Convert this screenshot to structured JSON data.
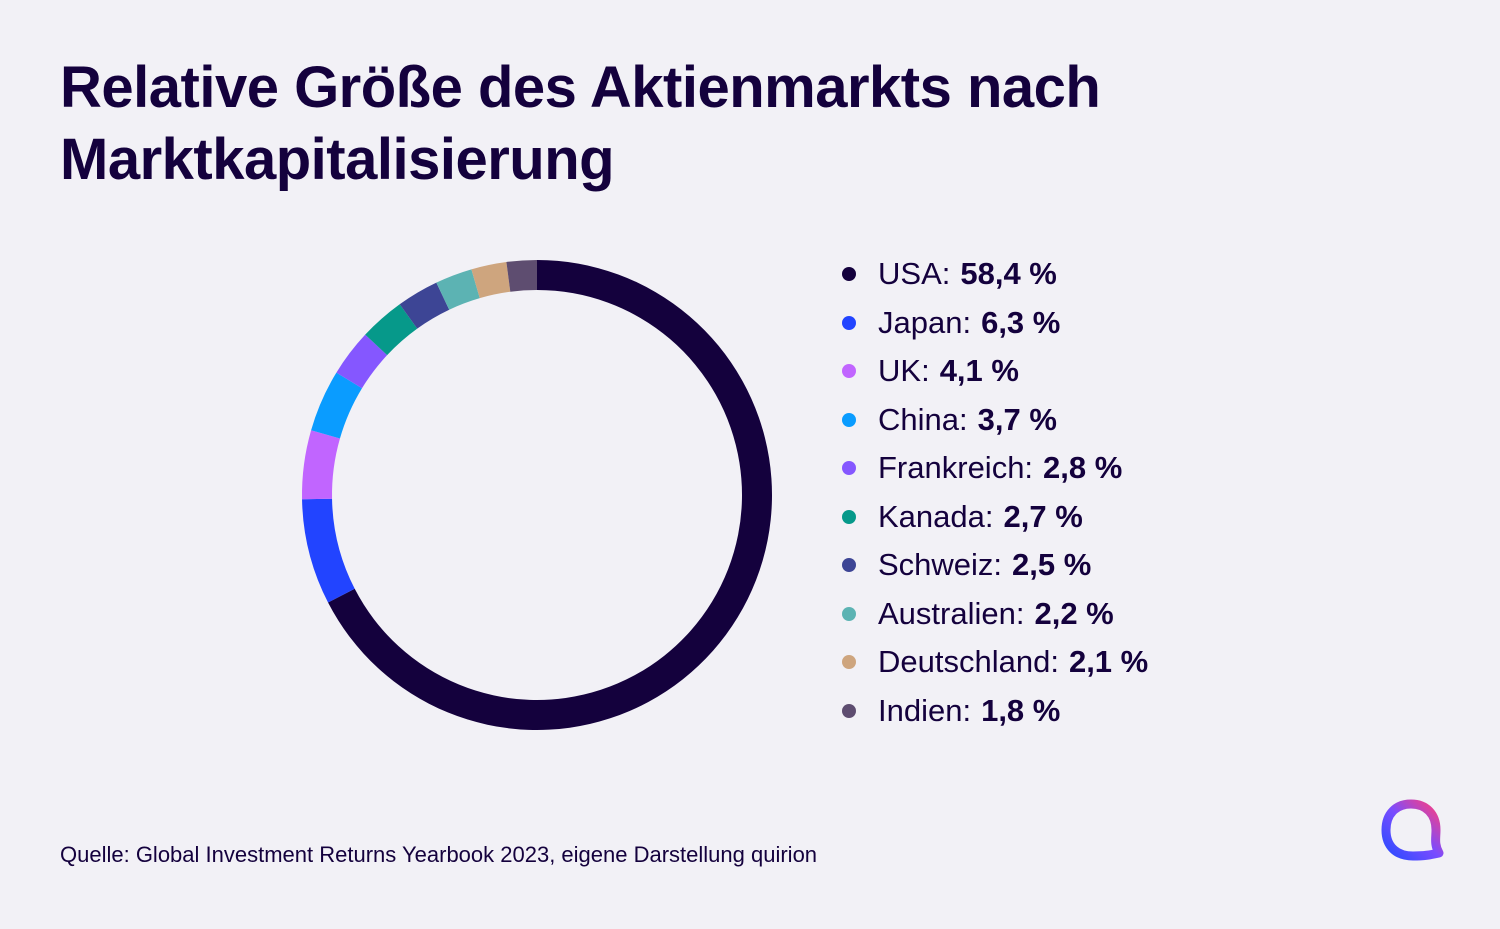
{
  "chart_data": {
    "type": "pie",
    "variant": "donut",
    "title": "Relative Größe des Aktienmarkts nach Marktkapitalisierung",
    "categories": [
      "USA",
      "Japan",
      "UK",
      "China",
      "Frankreich",
      "Kanada",
      "Schweiz",
      "Australien",
      "Deutschland",
      "Indien"
    ],
    "values": [
      58.4,
      6.3,
      4.1,
      3.7,
      2.8,
      2.7,
      2.5,
      2.2,
      2.1,
      1.8
    ],
    "value_labels": [
      "58,4 %",
      "6,3 %",
      "4,1 %",
      "3,7 %",
      "2,8 %",
      "2,7 %",
      "2,5 %",
      "2,2 %",
      "2,1 %",
      "1,8 %"
    ],
    "colors": [
      "#14013d",
      "#2244ff",
      "#c165ff",
      "#0a9cff",
      "#8557ff",
      "#06998a",
      "#3d4595",
      "#5cb3b3",
      "#cea57e",
      "#5e4d70"
    ],
    "legend_position": "right"
  },
  "source": "Quelle: Global Investment Returns Yearbook 2023, eigene Darstellung quirion",
  "logo_icon": "quirion-logo-icon"
}
